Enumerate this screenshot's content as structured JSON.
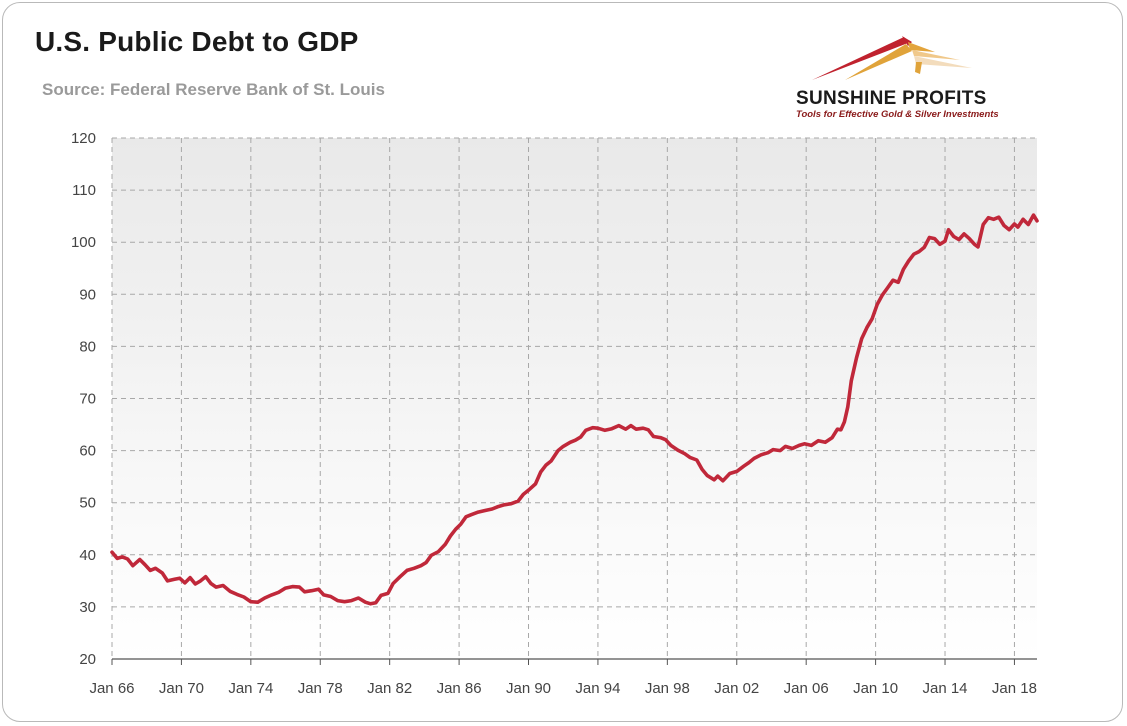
{
  "header": {
    "title": "U.S. Public Debt to GDP",
    "subtitle": "Source: Federal Reserve Bank of St. Louis"
  },
  "logo": {
    "name": "SUNSHINE PROFITS",
    "tagline": "Tools for Effective Gold & Silver Investments",
    "icon": "sunshine-rays-logo-icon",
    "colors": {
      "red": "#c0222e",
      "gold": "#e0a33a",
      "light": "#f0d9b8"
    }
  },
  "chart_data": {
    "type": "line",
    "title": "U.S. Public Debt to GDP",
    "xlabel": "",
    "ylabel": "",
    "ylim": [
      20,
      120
    ],
    "yticks": [
      120,
      110,
      100,
      90,
      80,
      70,
      60,
      50,
      40,
      30,
      20
    ],
    "xlim": [
      1966,
      2019.3
    ],
    "xticks": [
      {
        "label": "Jan 66",
        "year": 1966
      },
      {
        "label": "Jan 70",
        "year": 1970
      },
      {
        "label": "Jan 74",
        "year": 1974
      },
      {
        "label": "Jan 78",
        "year": 1978
      },
      {
        "label": "Jan 82",
        "year": 1982
      },
      {
        "label": "Jan 86",
        "year": 1986
      },
      {
        "label": "Jan 90",
        "year": 1990
      },
      {
        "label": "Jan 94",
        "year": 1994
      },
      {
        "label": "Jan 98",
        "year": 1998
      },
      {
        "label": "Jan 02",
        "year": 2002
      },
      {
        "label": "Jan 06",
        "year": 2006
      },
      {
        "label": "Jan 10",
        "year": 2010
      },
      {
        "label": "Jan 14",
        "year": 2014
      },
      {
        "label": "Jan 18",
        "year": 2018
      }
    ],
    "grid": true,
    "line_color": "#c0283a",
    "series": [
      {
        "name": "",
        "points": [
          [
            1966.0,
            40.5
          ],
          [
            1966.3,
            39.3
          ],
          [
            1966.6,
            39.6
          ],
          [
            1966.9,
            39.2
          ],
          [
            1967.2,
            37.9
          ],
          [
            1967.6,
            39.1
          ],
          [
            1967.9,
            38.1
          ],
          [
            1968.2,
            37.0
          ],
          [
            1968.5,
            37.4
          ],
          [
            1968.9,
            36.5
          ],
          [
            1969.2,
            35.0
          ],
          [
            1969.6,
            35.3
          ],
          [
            1969.9,
            35.5
          ],
          [
            1970.2,
            34.6
          ],
          [
            1970.5,
            35.6
          ],
          [
            1970.8,
            34.4
          ],
          [
            1971.1,
            35.0
          ],
          [
            1971.4,
            35.8
          ],
          [
            1971.7,
            34.5
          ],
          [
            1972.0,
            33.8
          ],
          [
            1972.4,
            34.1
          ],
          [
            1972.8,
            33.0
          ],
          [
            1973.2,
            32.4
          ],
          [
            1973.6,
            31.9
          ],
          [
            1974.0,
            31.0
          ],
          [
            1974.4,
            30.9
          ],
          [
            1974.8,
            31.7
          ],
          [
            1975.2,
            32.3
          ],
          [
            1975.6,
            32.8
          ],
          [
            1976.0,
            33.6
          ],
          [
            1976.4,
            33.9
          ],
          [
            1976.8,
            33.8
          ],
          [
            1977.1,
            32.9
          ],
          [
            1977.5,
            33.1
          ],
          [
            1977.9,
            33.4
          ],
          [
            1978.2,
            32.3
          ],
          [
            1978.6,
            32.0
          ],
          [
            1979.0,
            31.2
          ],
          [
            1979.4,
            31.0
          ],
          [
            1979.8,
            31.2
          ],
          [
            1980.2,
            31.7
          ],
          [
            1980.6,
            30.9
          ],
          [
            1980.9,
            30.6
          ],
          [
            1981.2,
            30.8
          ],
          [
            1981.5,
            32.2
          ],
          [
            1981.9,
            32.6
          ],
          [
            1982.2,
            34.5
          ],
          [
            1982.6,
            35.8
          ],
          [
            1983.0,
            37.0
          ],
          [
            1983.4,
            37.4
          ],
          [
            1983.8,
            37.9
          ],
          [
            1984.1,
            38.5
          ],
          [
            1984.4,
            39.9
          ],
          [
            1984.8,
            40.6
          ],
          [
            1985.2,
            42.0
          ],
          [
            1985.5,
            43.6
          ],
          [
            1985.8,
            44.9
          ],
          [
            1986.1,
            45.9
          ],
          [
            1986.4,
            47.3
          ],
          [
            1986.7,
            47.7
          ],
          [
            1987.1,
            48.2
          ],
          [
            1987.5,
            48.5
          ],
          [
            1987.9,
            48.8
          ],
          [
            1988.2,
            49.2
          ],
          [
            1988.6,
            49.6
          ],
          [
            1989.0,
            49.8
          ],
          [
            1989.4,
            50.3
          ],
          [
            1989.7,
            51.6
          ],
          [
            1990.0,
            52.4
          ],
          [
            1990.4,
            53.6
          ],
          [
            1990.7,
            55.9
          ],
          [
            1991.0,
            57.2
          ],
          [
            1991.3,
            58.0
          ],
          [
            1991.7,
            60.0
          ],
          [
            1992.0,
            60.8
          ],
          [
            1992.4,
            61.6
          ],
          [
            1992.7,
            62.0
          ],
          [
            1993.0,
            62.6
          ],
          [
            1993.3,
            63.9
          ],
          [
            1993.7,
            64.4
          ],
          [
            1994.0,
            64.3
          ],
          [
            1994.4,
            63.9
          ],
          [
            1994.8,
            64.2
          ],
          [
            1995.2,
            64.8
          ],
          [
            1995.6,
            64.1
          ],
          [
            1995.9,
            64.8
          ],
          [
            1996.2,
            64.1
          ],
          [
            1996.6,
            64.3
          ],
          [
            1996.9,
            64.0
          ],
          [
            1997.2,
            62.7
          ],
          [
            1997.6,
            62.5
          ],
          [
            1997.9,
            62.1
          ],
          [
            1998.2,
            61.0
          ],
          [
            1998.6,
            60.1
          ],
          [
            1999.0,
            59.4
          ],
          [
            1999.3,
            58.7
          ],
          [
            1999.7,
            58.2
          ],
          [
            2000.0,
            56.4
          ],
          [
            2000.3,
            55.2
          ],
          [
            2000.7,
            54.4
          ],
          [
            2000.9,
            55.1
          ],
          [
            2001.2,
            54.2
          ],
          [
            2001.6,
            55.6
          ],
          [
            2002.0,
            56.0
          ],
          [
            2002.4,
            57.0
          ],
          [
            2002.7,
            57.7
          ],
          [
            2003.0,
            58.5
          ],
          [
            2003.4,
            59.2
          ],
          [
            2003.8,
            59.6
          ],
          [
            2004.1,
            60.2
          ],
          [
            2004.5,
            60.0
          ],
          [
            2004.8,
            60.8
          ],
          [
            2005.2,
            60.4
          ],
          [
            2005.6,
            61.0
          ],
          [
            2005.9,
            61.3
          ],
          [
            2006.3,
            61.0
          ],
          [
            2006.7,
            61.9
          ],
          [
            2007.1,
            61.6
          ],
          [
            2007.5,
            62.5
          ],
          [
            2007.8,
            64.1
          ],
          [
            2008.0,
            64.0
          ],
          [
            2008.2,
            65.5
          ],
          [
            2008.4,
            68.4
          ],
          [
            2008.6,
            73.4
          ],
          [
            2008.9,
            77.8
          ],
          [
            2009.2,
            81.5
          ],
          [
            2009.5,
            83.6
          ],
          [
            2009.8,
            85.3
          ],
          [
            2010.1,
            88.1
          ],
          [
            2010.4,
            89.9
          ],
          [
            2010.7,
            91.3
          ],
          [
            2011.0,
            92.7
          ],
          [
            2011.3,
            92.3
          ],
          [
            2011.6,
            94.8
          ],
          [
            2011.9,
            96.4
          ],
          [
            2012.2,
            97.7
          ],
          [
            2012.5,
            98.2
          ],
          [
            2012.8,
            99.0
          ],
          [
            2013.1,
            100.9
          ],
          [
            2013.4,
            100.7
          ],
          [
            2013.7,
            99.6
          ],
          [
            2014.0,
            100.2
          ],
          [
            2014.2,
            102.4
          ],
          [
            2014.5,
            101.1
          ],
          [
            2014.8,
            100.5
          ],
          [
            2015.1,
            101.6
          ],
          [
            2015.4,
            100.7
          ],
          [
            2015.7,
            99.6
          ],
          [
            2015.9,
            99.1
          ],
          [
            2016.2,
            103.4
          ],
          [
            2016.5,
            104.7
          ],
          [
            2016.8,
            104.4
          ],
          [
            2017.1,
            104.8
          ],
          [
            2017.4,
            103.2
          ],
          [
            2017.7,
            102.4
          ],
          [
            2018.0,
            103.5
          ],
          [
            2018.2,
            102.9
          ],
          [
            2018.5,
            104.4
          ],
          [
            2018.8,
            103.4
          ],
          [
            2019.1,
            105.2
          ],
          [
            2019.3,
            104.1
          ]
        ]
      }
    ]
  }
}
